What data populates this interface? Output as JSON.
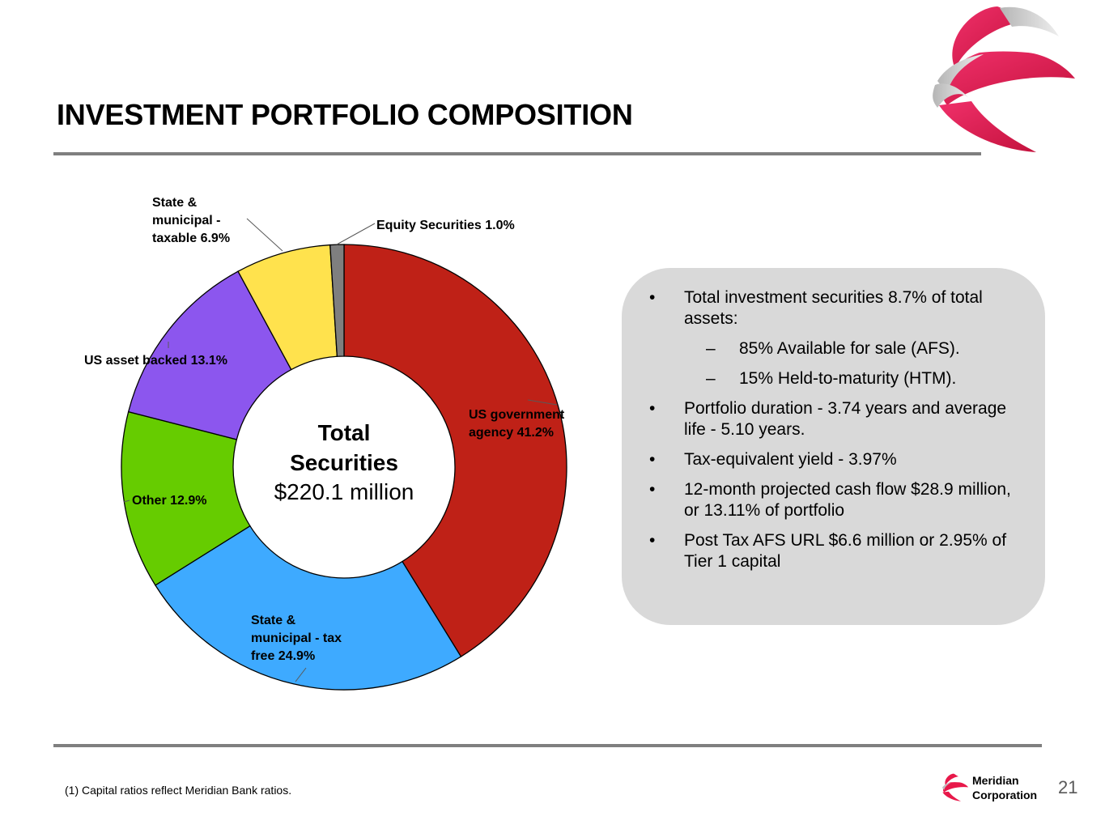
{
  "title": "INVESTMENT PORTFOLIO COMPOSITION",
  "chart_data": {
    "type": "pie",
    "variant": "donut",
    "center_label": {
      "line1": "Total",
      "line2": "Securities",
      "line3": "$220.1 million"
    },
    "slices": [
      {
        "label_lines": [
          "US government",
          "agency 41.2%"
        ],
        "value": 41.2,
        "color": "#bf2117"
      },
      {
        "label_lines": [
          "State &",
          "municipal - tax",
          "free 24.9%"
        ],
        "value": 24.9,
        "color": "#3eaaff"
      },
      {
        "label_lines": [
          "Other 12.9%"
        ],
        "value": 12.9,
        "color": "#66cc00"
      },
      {
        "label_lines": [
          "US asset backed 13.1%"
        ],
        "value": 13.1,
        "color": "#8c56ee"
      },
      {
        "label_lines": [
          "State &",
          "municipal -",
          "taxable 6.9%"
        ],
        "value": 6.9,
        "color": "#ffe24d"
      },
      {
        "label_lines": [
          "Equity Securities 1.0%"
        ],
        "value": 1.0,
        "color": "#7f7f7f"
      }
    ]
  },
  "info_bullets": [
    {
      "level": 1,
      "marker": "•",
      "text": "Total investment securities 8.7% of total assets:"
    },
    {
      "level": 2,
      "marker": "–",
      "text": "85% Available for sale (AFS)."
    },
    {
      "level": 2,
      "marker": "–",
      "text": "15% Held-to-maturity (HTM)."
    },
    {
      "level": 1,
      "marker": "•",
      "text": "Portfolio duration - 3.74 years and average life - 5.10 years."
    },
    {
      "level": 1,
      "marker": "•",
      "text": "Tax-equivalent yield - 3.97%"
    },
    {
      "level": 1,
      "marker": "•",
      "text": "12-month projected cash flow $28.9 million, or 13.11% of portfolio"
    },
    {
      "level": 1,
      "marker": "•",
      "text": "Post Tax AFS URL $6.6 million or 2.95% of Tier 1 capital"
    }
  ],
  "footnote": "(1) Capital ratios reflect Meridian Bank ratios.",
  "brand": {
    "line1": "Meridian",
    "line2": "Corporation"
  },
  "page_number": "21",
  "colors": {
    "accent": "#e8184a",
    "rule": "#7f7f7f",
    "box": "#d9d9d9"
  }
}
